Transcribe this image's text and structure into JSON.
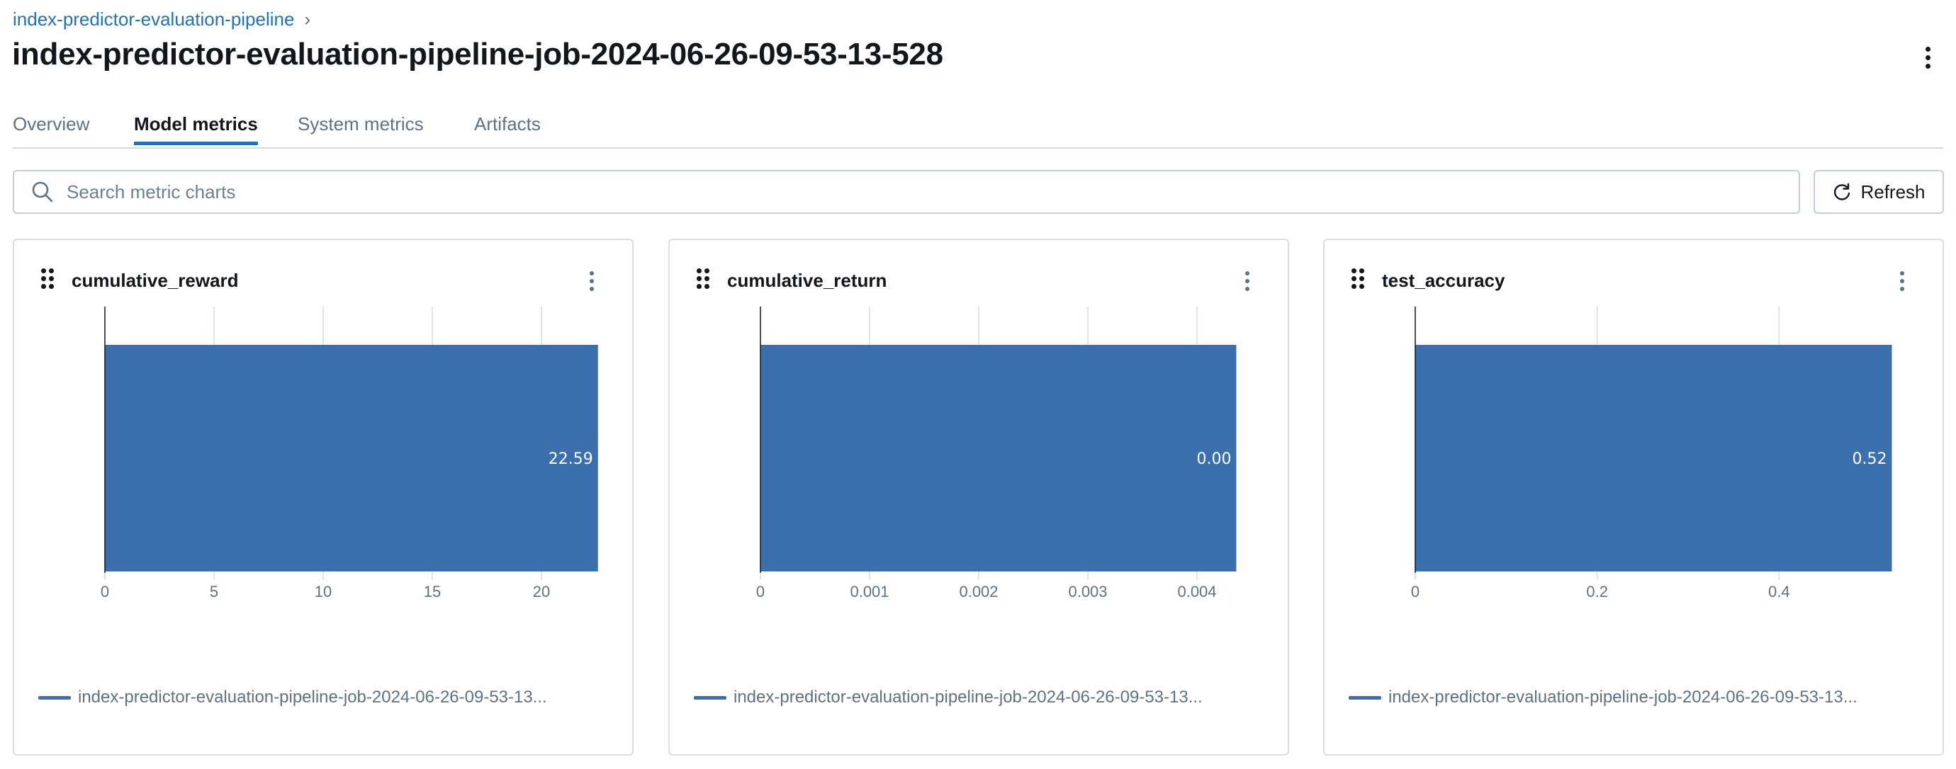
{
  "breadcrumb": {
    "parent": "index-predictor-evaluation-pipeline",
    "separator": "›"
  },
  "page_title": "index-predictor-evaluation-pipeline-job-2024-06-26-09-53-13-528",
  "tabs": [
    {
      "label": "Overview",
      "active": false
    },
    {
      "label": "Model metrics",
      "active": true
    },
    {
      "label": "System metrics",
      "active": false
    },
    {
      "label": "Artifacts",
      "active": false
    }
  ],
  "search": {
    "placeholder": "Search metric charts",
    "value": ""
  },
  "toolbar": {
    "refresh_label": "Refresh"
  },
  "colors": {
    "bar": "#3b6fae",
    "accent": "#2272b4",
    "grid": "#d6dce2",
    "axis": "#11171c",
    "tick_text": "#5f7281"
  },
  "cards": [
    {
      "title": "cumulative_reward",
      "legend": "index-predictor-evaluation-pipeline-job-2024-06-26-09-53-13..."
    },
    {
      "title": "cumulative_return",
      "legend": "index-predictor-evaluation-pipeline-job-2024-06-26-09-53-13..."
    },
    {
      "title": "test_accuracy",
      "legend": "index-predictor-evaluation-pipeline-job-2024-06-26-09-53-13..."
    }
  ],
  "chart_data": [
    {
      "type": "bar",
      "orientation": "horizontal",
      "title": "cumulative_reward",
      "series": [
        {
          "name": "index-predictor-evaluation-pipeline-job-2024-06-26-09-53-13...",
          "values": [
            22.59
          ]
        }
      ],
      "data_labels": [
        "22.59"
      ],
      "xlim": [
        0,
        25
      ],
      "xticks": [
        0,
        5,
        10,
        15,
        20
      ],
      "xtick_labels": [
        "0",
        "5",
        "10",
        "15",
        "20"
      ],
      "grid": true,
      "legend_position": "bottom"
    },
    {
      "type": "bar",
      "orientation": "horizontal",
      "title": "cumulative_return",
      "series": [
        {
          "name": "index-predictor-evaluation-pipeline-job-2024-06-26-09-53-13...",
          "values": [
            0.00436
          ]
        }
      ],
      "data_labels": [
        "0.00"
      ],
      "xlim": [
        0,
        0.005
      ],
      "xticks": [
        0,
        0.001,
        0.002,
        0.003,
        0.004
      ],
      "xtick_labels": [
        "0",
        "0.001",
        "0.002",
        "0.003",
        "0.004"
      ],
      "grid": true,
      "legend_position": "bottom"
    },
    {
      "type": "bar",
      "orientation": "horizontal",
      "title": "test_accuracy",
      "series": [
        {
          "name": "index-predictor-evaluation-pipeline-job-2024-06-26-09-53-13...",
          "values": [
            0.524
          ]
        }
      ],
      "data_labels": [
        "0.52"
      ],
      "xlim": [
        0,
        0.6
      ],
      "xticks": [
        0,
        0.2,
        0.4
      ],
      "xtick_labels": [
        "0",
        "0.2",
        "0.4"
      ],
      "grid": true,
      "legend_position": "bottom"
    }
  ]
}
